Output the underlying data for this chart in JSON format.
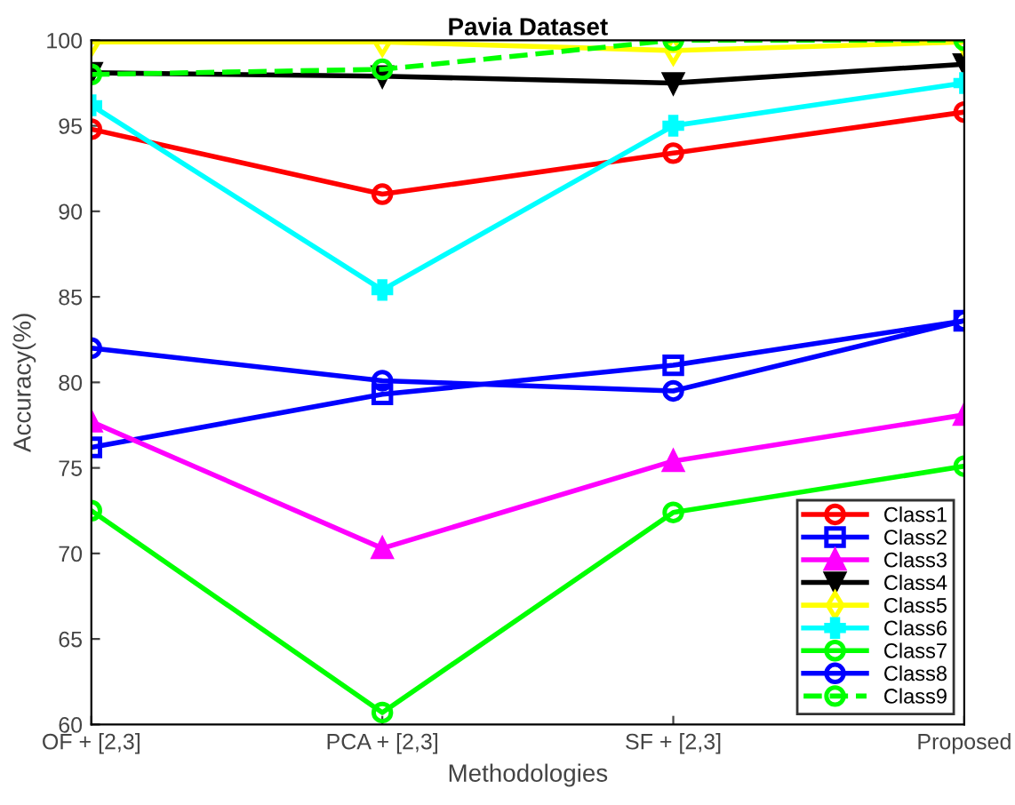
{
  "chart_data": {
    "type": "line",
    "title": "Pavia Dataset",
    "xlabel": "Methodologies",
    "ylabel": "Accuracy(%)",
    "categories": [
      "OF + [2,3]",
      "PCA + [2,3]",
      "SF + [2,3]",
      "Proposed"
    ],
    "ylim": [
      60,
      100
    ],
    "yticks": [
      60,
      65,
      70,
      75,
      80,
      85,
      90,
      95,
      100
    ],
    "grid": false,
    "legend": "bottom right",
    "series": [
      {
        "name": "Class1",
        "color": "#ff0000",
        "marker": "circle",
        "values": [
          94.8,
          91.0,
          93.4,
          95.8
        ]
      },
      {
        "name": "Class2",
        "color": "#0000ff",
        "marker": "square",
        "values": [
          76.2,
          79.3,
          81.0,
          83.6
        ]
      },
      {
        "name": "Class3",
        "color": "#ff00ff",
        "marker": "triangle",
        "values": [
          77.7,
          70.3,
          75.4,
          78.1
        ]
      },
      {
        "name": "Class4",
        "color": "#000000",
        "marker": "triangle-down",
        "values": [
          98.1,
          97.9,
          97.5,
          98.6
        ]
      },
      {
        "name": "Class5",
        "color": "#ffff00",
        "marker": "diamond",
        "values": [
          99.9,
          99.9,
          99.4,
          99.9
        ]
      },
      {
        "name": "Class6",
        "color": "#00ffff",
        "marker": "cross",
        "values": [
          96.2,
          85.4,
          95.0,
          97.5
        ]
      },
      {
        "name": "Class7",
        "color": "#00ff00",
        "marker": "circle",
        "values": [
          72.5,
          60.7,
          72.4,
          75.1
        ]
      },
      {
        "name": "Class8",
        "color": "#0000ff",
        "marker": "circle",
        "values": [
          82.0,
          80.1,
          79.5,
          83.6
        ]
      },
      {
        "name": "Class9",
        "color": "#00ff00",
        "marker": "circle",
        "line_style": "dashed",
        "values": [
          98.0,
          98.3,
          100.0,
          100.0
        ]
      }
    ]
  }
}
